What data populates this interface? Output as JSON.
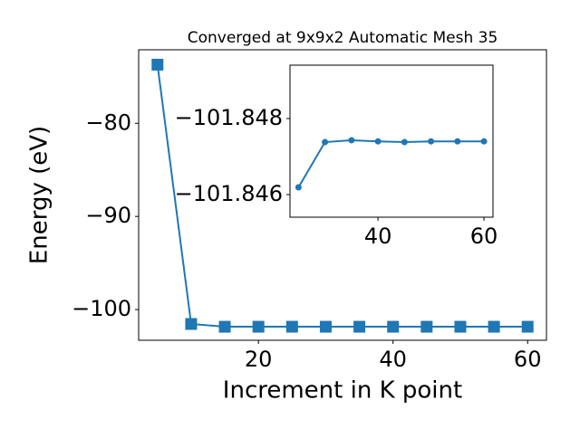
{
  "chart_data": [
    {
      "type": "line",
      "title": "Converged at 9x9x2 Automatic Mesh 35",
      "x_label": "Increment in K point",
      "y_label": "Energy (eV)",
      "x": [
        5,
        10,
        15,
        20,
        25,
        30,
        35,
        40,
        45,
        50,
        55,
        60
      ],
      "series": [
        {
          "color": "#1f77b4",
          "marker": "square",
          "values": [
            -73.7,
            -101.55,
            -101.847,
            -101.847,
            -101.846,
            -101.847,
            -101.847,
            -101.847,
            -101.847,
            -101.847,
            -101.847,
            -101.847
          ]
        }
      ],
      "xlim": [
        2.2,
        62.8
      ],
      "ylim": [
        -103.3,
        -72.1
      ],
      "xticks": [
        20,
        40,
        60
      ],
      "yticks": [
        {
          "value": -100,
          "label": "−100"
        },
        {
          "value": -90,
          "label": "−90"
        },
        {
          "value": -80,
          "label": "−80"
        }
      ]
    },
    {
      "type": "line",
      "x": [
        25,
        30,
        35,
        40,
        45,
        50,
        55,
        60
      ],
      "series": [
        {
          "color": "#1f77b4",
          "marker": "circle",
          "values": [
            -101.84619,
            -101.84738,
            -101.84743,
            -101.8474,
            -101.84738,
            -101.8474,
            -101.8474,
            -101.8474
          ]
        }
      ],
      "xlim": [
        23.4,
        61.7
      ],
      "ylim": [
        -101.845405,
        -101.849405
      ],
      "xticks": [
        40,
        60
      ],
      "yticks": [
        {
          "value": -101.846,
          "label": "−101.846"
        },
        {
          "value": -101.848,
          "label": "−101.848"
        }
      ]
    }
  ]
}
